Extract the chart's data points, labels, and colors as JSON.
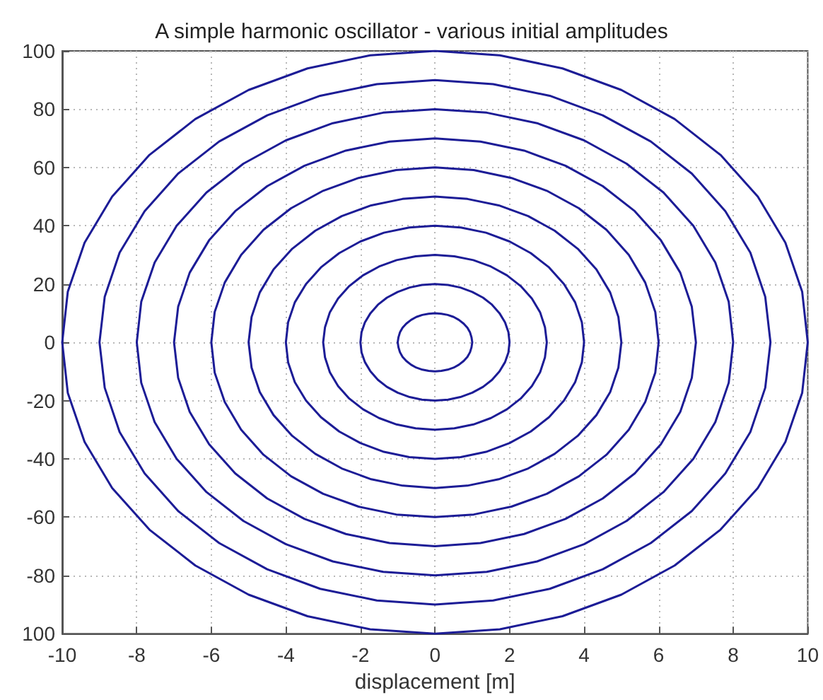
{
  "chart_data": {
    "type": "line",
    "title": "A simple harmonic oscillator - various initial amplitudes",
    "xlabel": "displacement [m]",
    "xlim": [
      -10,
      10
    ],
    "xticks": [
      -10,
      -8,
      -6,
      -4,
      -2,
      0,
      2,
      4,
      6,
      8,
      10
    ],
    "ylim": [
      -100,
      100
    ],
    "yticks": [
      {
        "value": -100,
        "label": "100"
      },
      -80,
      -60,
      -40,
      -20,
      0,
      20,
      40,
      60,
      80,
      100
    ],
    "grid": true,
    "marker": "none",
    "line_style": "solid",
    "series": [
      {
        "color": "#1c1c96",
        "x": [
          1,
          0.98,
          0.94,
          0.87,
          0.77,
          0.64,
          0.5,
          0.34,
          0.17,
          0,
          -0.17,
          -0.34,
          -0.5,
          -0.64,
          -0.77,
          -0.87,
          -0.94,
          -0.98,
          -1,
          -0.98,
          -0.94,
          -0.87,
          -0.77,
          -0.64,
          -0.5,
          -0.34,
          -0.17,
          0,
          0.17,
          0.34,
          0.5,
          0.64,
          0.77,
          0.87,
          0.94,
          0.98,
          1,
          0.98
        ],
        "values": [
          0,
          1.7,
          3.4,
          5,
          6.4,
          7.7,
          8.7,
          9.4,
          9.8,
          10,
          9.8,
          9.4,
          8.7,
          7.7,
          6.4,
          5,
          3.4,
          1.7,
          0,
          -1.7,
          -3.4,
          -5,
          -6.4,
          -7.7,
          -8.7,
          -9.4,
          -9.8,
          -10,
          -9.8,
          -9.4,
          -8.7,
          -7.7,
          -6.4,
          -5,
          -3.4,
          -1.7,
          0,
          1.7
        ]
      },
      {
        "color": "#1c1c96",
        "x": [
          2,
          1.97,
          1.88,
          1.73,
          1.53,
          1.29,
          1,
          0.68,
          0.35,
          0,
          -0.35,
          -0.68,
          -1,
          -1.29,
          -1.53,
          -1.73,
          -1.88,
          -1.97,
          -2,
          -1.97,
          -1.88,
          -1.73,
          -1.53,
          -1.29,
          -1,
          -0.68,
          -0.35,
          0,
          0.35,
          0.68,
          1,
          1.29,
          1.53,
          1.73,
          1.88,
          1.97,
          2,
          1.97
        ],
        "values": [
          0,
          3.5,
          6.8,
          10,
          12.9,
          15.3,
          17.3,
          18.8,
          19.7,
          20,
          19.7,
          18.8,
          17.3,
          15.3,
          12.9,
          10,
          6.8,
          3.5,
          0,
          -3.5,
          -6.8,
          -10,
          -12.9,
          -15.3,
          -17.3,
          -18.8,
          -19.7,
          -20,
          -19.7,
          -18.8,
          -17.3,
          -15.3,
          -12.9,
          -10,
          -6.8,
          -3.5,
          0,
          3.5
        ]
      },
      {
        "color": "#1c1c96",
        "x": [
          3,
          2.95,
          2.82,
          2.6,
          2.3,
          1.93,
          1.5,
          1.03,
          0.52,
          0,
          -0.52,
          -1.03,
          -1.5,
          -1.93,
          -2.3,
          -2.6,
          -2.82,
          -2.95,
          -3,
          -2.95,
          -2.82,
          -2.6,
          -2.3,
          -1.93,
          -1.5,
          -1.03,
          -0.52,
          0,
          0.52,
          1.03,
          1.5,
          1.93,
          2.3,
          2.6,
          2.82,
          2.95,
          3,
          2.95
        ],
        "values": [
          0,
          5.2,
          10.3,
          15,
          19.3,
          23,
          26,
          28.2,
          29.5,
          30,
          29.5,
          28.2,
          26,
          23,
          19.3,
          15,
          10.3,
          5.2,
          0,
          -5.2,
          -10.3,
          -15,
          -19.3,
          -23,
          -26,
          -28.2,
          -29.5,
          -30,
          -29.5,
          -28.2,
          -26,
          -23,
          -19.3,
          -15,
          -10.3,
          -5.2,
          0,
          5.2
        ]
      },
      {
        "color": "#1c1c96",
        "x": [
          4,
          3.94,
          3.76,
          3.46,
          3.06,
          2.57,
          2,
          1.37,
          0.69,
          0,
          -0.69,
          -1.37,
          -2,
          -2.57,
          -3.06,
          -3.46,
          -3.76,
          -3.94,
          -4,
          -3.94,
          -3.76,
          -3.46,
          -3.06,
          -2.57,
          -2,
          -1.37,
          -0.69,
          0,
          0.69,
          1.37,
          2,
          2.57,
          3.06,
          3.46,
          3.76,
          3.94,
          4,
          3.94
        ],
        "values": [
          0,
          6.9,
          13.7,
          20,
          25.7,
          30.6,
          34.6,
          37.6,
          39.4,
          40,
          39.4,
          37.6,
          34.6,
          30.6,
          25.7,
          20,
          13.7,
          6.9,
          0,
          -6.9,
          -13.7,
          -20,
          -25.7,
          -30.6,
          -34.6,
          -37.6,
          -39.4,
          -40,
          -39.4,
          -37.6,
          -34.6,
          -30.6,
          -25.7,
          -20,
          -13.7,
          -6.9,
          0,
          6.9
        ]
      },
      {
        "color": "#1c1c96",
        "x": [
          5,
          4.92,
          4.7,
          4.33,
          3.83,
          3.21,
          2.5,
          1.71,
          0.87,
          0,
          -0.87,
          -1.71,
          -2.5,
          -3.21,
          -3.83,
          -4.33,
          -4.7,
          -4.92,
          -5,
          -4.92,
          -4.7,
          -4.33,
          -3.83,
          -3.21,
          -2.5,
          -1.71,
          -0.87,
          0,
          0.87,
          1.71,
          2.5,
          3.21,
          3.83,
          4.33,
          4.7,
          4.92,
          5,
          4.92
        ],
        "values": [
          0,
          8.7,
          17.1,
          25,
          32.1,
          38.3,
          43.3,
          47,
          49.2,
          50,
          49.2,
          47,
          43.3,
          38.3,
          32.1,
          25,
          17.1,
          8.7,
          0,
          -8.7,
          -17.1,
          -25,
          -32.1,
          -38.3,
          -43.3,
          -47,
          -49.2,
          -50,
          -49.2,
          -47,
          -43.3,
          -38.3,
          -32.1,
          -25,
          -17.1,
          -8.7,
          0,
          8.7
        ]
      },
      {
        "color": "#1c1c96",
        "x": [
          6,
          5.91,
          5.64,
          5.2,
          4.6,
          3.86,
          3,
          2.05,
          1.04,
          0,
          -1.04,
          -2.05,
          -3,
          -3.86,
          -4.6,
          -5.2,
          -5.64,
          -5.91,
          -6,
          -5.91,
          -5.64,
          -5.2,
          -4.6,
          -3.86,
          -3,
          -2.05,
          -1.04,
          0,
          1.04,
          2.05,
          3,
          3.86,
          4.6,
          5.2,
          5.64,
          5.91,
          6,
          5.91
        ],
        "values": [
          0,
          10.4,
          20.5,
          30,
          38.6,
          46,
          52,
          56.4,
          59.1,
          60,
          59.1,
          56.4,
          52,
          46,
          38.6,
          30,
          20.5,
          10.4,
          0,
          -10.4,
          -20.5,
          -30,
          -38.6,
          -46,
          -52,
          -56.4,
          -59.1,
          -60,
          -59.1,
          -56.4,
          -52,
          -46,
          -38.6,
          -30,
          -20.5,
          -10.4,
          0,
          10.4
        ]
      },
      {
        "color": "#1c1c96",
        "x": [
          7,
          6.89,
          6.58,
          6.06,
          5.36,
          4.5,
          3.5,
          2.39,
          1.22,
          0,
          -1.22,
          -2.39,
          -3.5,
          -4.5,
          -5.36,
          -6.06,
          -6.58,
          -6.89,
          -7,
          -6.89,
          -6.58,
          -6.06,
          -5.36,
          -4.5,
          -3.5,
          -2.39,
          -1.22,
          0,
          1.22,
          2.39,
          3.5,
          4.5,
          5.36,
          6.06,
          6.58,
          6.89,
          7,
          6.89
        ],
        "values": [
          0,
          12.2,
          23.9,
          35,
          45,
          53.6,
          60.6,
          65.8,
          68.9,
          70,
          68.9,
          65.8,
          60.6,
          53.6,
          45,
          35,
          23.9,
          12.2,
          0,
          -12.2,
          -23.9,
          -35,
          -45,
          -53.6,
          -60.6,
          -65.8,
          -68.9,
          -70,
          -68.9,
          -65.8,
          -60.6,
          -53.6,
          -45,
          -35,
          -23.9,
          -12.2,
          0,
          12.2
        ]
      },
      {
        "color": "#1c1c96",
        "x": [
          8,
          7.88,
          7.52,
          6.93,
          6.13,
          5.14,
          4,
          2.74,
          1.39,
          0,
          -1.39,
          -2.74,
          -4,
          -5.14,
          -6.13,
          -6.93,
          -7.52,
          -7.88,
          -8,
          -7.88,
          -7.52,
          -6.93,
          -6.13,
          -5.14,
          -4,
          -2.74,
          -1.39,
          0,
          1.39,
          2.74,
          4,
          5.14,
          6.13,
          6.93,
          7.52,
          7.88,
          8,
          7.88
        ],
        "values": [
          0,
          13.9,
          27.4,
          40,
          51.4,
          61.3,
          69.3,
          75.2,
          78.8,
          80,
          78.8,
          75.2,
          69.3,
          61.3,
          51.4,
          40,
          27.4,
          13.9,
          0,
          -13.9,
          -27.4,
          -40,
          -51.4,
          -61.3,
          -69.3,
          -75.2,
          -78.8,
          -80,
          -78.8,
          -75.2,
          -69.3,
          -61.3,
          -51.4,
          -40,
          -27.4,
          -13.9,
          0,
          13.9
        ]
      },
      {
        "color": "#1c1c96",
        "x": [
          9,
          8.86,
          8.46,
          7.79,
          6.89,
          5.79,
          4.5,
          3.08,
          1.56,
          0,
          -1.56,
          -3.08,
          -4.5,
          -5.79,
          -6.89,
          -7.79,
          -8.46,
          -8.86,
          -9,
          -8.86,
          -8.46,
          -7.79,
          -6.89,
          -5.79,
          -4.5,
          -3.08,
          -1.56,
          0,
          1.56,
          3.08,
          4.5,
          5.79,
          6.89,
          7.79,
          8.46,
          8.86,
          9,
          8.86
        ],
        "values": [
          0,
          15.6,
          30.8,
          45,
          57.9,
          68.9,
          77.9,
          84.6,
          88.6,
          90,
          88.6,
          84.6,
          77.9,
          68.9,
          57.9,
          45,
          30.8,
          15.6,
          0,
          -15.6,
          -30.8,
          -45,
          -57.9,
          -68.9,
          -77.9,
          -84.6,
          -88.6,
          -90,
          -88.6,
          -84.6,
          -77.9,
          -68.9,
          -57.9,
          -45,
          -30.8,
          -15.6,
          0,
          15.6
        ]
      },
      {
        "color": "#1c1c96",
        "x": [
          10,
          9.85,
          9.4,
          8.66,
          7.66,
          6.43,
          5,
          3.42,
          1.74,
          0,
          -1.74,
          -3.42,
          -5,
          -6.43,
          -7.66,
          -8.66,
          -9.4,
          -9.85,
          -10,
          -9.85,
          -9.4,
          -8.66,
          -7.66,
          -6.43,
          -5,
          -3.42,
          -1.74,
          0,
          1.74,
          3.42,
          5,
          6.43,
          7.66,
          8.66,
          9.4,
          9.85,
          10,
          9.85
        ],
        "values": [
          0,
          17.4,
          34.2,
          50,
          64.3,
          76.6,
          86.6,
          94,
          98.5,
          100,
          98.5,
          94,
          86.6,
          76.6,
          64.3,
          50,
          34.2,
          17.4,
          0,
          -17.4,
          -34.2,
          -50,
          -64.3,
          -76.6,
          -86.6,
          -94,
          -98.5,
          -100,
          -98.5,
          -94,
          -86.6,
          -76.6,
          -64.3,
          -50,
          -34.2,
          -17.4,
          0,
          17.4
        ]
      }
    ]
  }
}
